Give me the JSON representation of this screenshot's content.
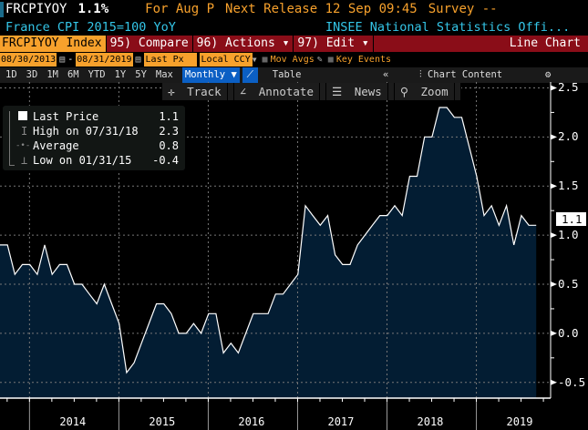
{
  "header": {
    "ticker": "FRCPIYOY",
    "last": "1.1%",
    "period": "For Aug P",
    "next_release": "Next Release 12 Sep 09:45",
    "survey": "Survey --",
    "description": "France CPI 2015=100 YoY",
    "source": "INSEE National Statistics Offi..."
  },
  "toolbar": {
    "security": "FRCPIYOY Index",
    "compare": "95) Compare",
    "actions": "96) Actions",
    "edit": "97) Edit",
    "chart_type": "Line Chart",
    "start_date": "08/30/2013",
    "end_date": "08/31/2019",
    "field": "Last Px",
    "currency": "Local CCY",
    "mov_avgs": "Mov Avgs",
    "key_events": "Key Events"
  },
  "periods": [
    "1D",
    "3D",
    "1M",
    "6M",
    "YTD",
    "1Y",
    "5Y",
    "Max"
  ],
  "frequency": "Monthly",
  "table": "Table",
  "chart_content": "Chart Content",
  "tools": {
    "track": "Track",
    "annotate": "Annotate",
    "news": "News",
    "zoom": "Zoom"
  },
  "legend": {
    "last_label": "Last Price",
    "last_value": "1.1",
    "high_label": "High on 07/31/18",
    "high_value": "2.3",
    "avg_label": "Average",
    "avg_value": "0.8",
    "low_label": "Low on 01/31/15",
    "low_value": "-0.4"
  },
  "colors": {
    "fill": "#031d33",
    "line": "#ffffff",
    "orange": "#f7a12c",
    "red": "#8a0d18",
    "cyan": "#34c6e8"
  },
  "chart_data": {
    "type": "area",
    "title": "FRCPIYOY Index",
    "start": "2013-08",
    "frequency": "monthly",
    "values": [
      0.9,
      0.9,
      0.6,
      0.7,
      0.7,
      0.6,
      0.9,
      0.6,
      0.7,
      0.7,
      0.5,
      0.5,
      0.4,
      0.3,
      0.5,
      0.3,
      0.1,
      -0.4,
      -0.3,
      -0.1,
      0.1,
      0.3,
      0.3,
      0.2,
      0.0,
      0.0,
      0.1,
      0.0,
      0.2,
      0.2,
      -0.2,
      -0.1,
      -0.2,
      0.0,
      0.2,
      0.2,
      0.2,
      0.4,
      0.4,
      0.5,
      0.6,
      1.3,
      1.2,
      1.1,
      1.2,
      0.8,
      0.7,
      0.7,
      0.9,
      1.0,
      1.1,
      1.2,
      1.2,
      1.3,
      1.2,
      1.6,
      1.6,
      2.0,
      2.0,
      2.3,
      2.3,
      2.2,
      2.2,
      1.9,
      1.6,
      1.2,
      1.3,
      1.1,
      1.3,
      0.9,
      1.2,
      1.1,
      1.1
    ],
    "yticks": [
      "-0.5",
      "0.0",
      "0.5",
      "1.0",
      "1.5",
      "2.0",
      "2.5"
    ],
    "xticks": [
      "2014",
      "2015",
      "2016",
      "2017",
      "2018",
      "2019"
    ],
    "ylim": [
      -0.66,
      2.56
    ],
    "last_label": "1.1",
    "grid": true
  }
}
